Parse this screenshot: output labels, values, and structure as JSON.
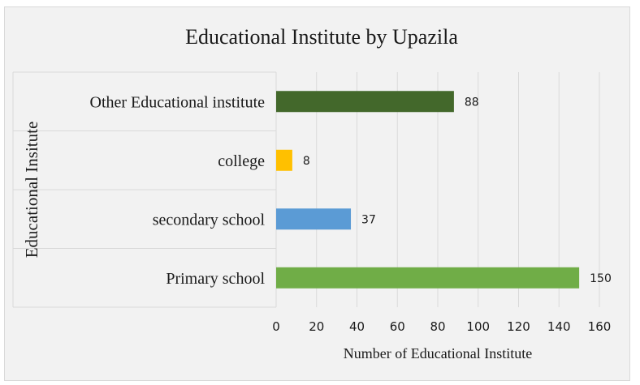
{
  "chart_data": {
    "type": "bar",
    "orientation": "horizontal",
    "title": "Educational Institute by Upazila",
    "xlabel": "Number of Educational Institute",
    "ylabel": "Educational Insitute",
    "categories": [
      "Other Educational institute",
      "college",
      "secondary school",
      "Primary school"
    ],
    "values": [
      88,
      8,
      37,
      150
    ],
    "data_labels": [
      "88",
      "8",
      "37",
      "150"
    ],
    "colors": [
      "#43682b",
      "#ffc000",
      "#5b9bd5",
      "#70ad47"
    ],
    "xlim": [
      0,
      160
    ],
    "xticks": [
      "0",
      "20",
      "40",
      "60",
      "80",
      "100",
      "120",
      "140",
      "160"
    ],
    "grid": true,
    "legend": "none"
  }
}
